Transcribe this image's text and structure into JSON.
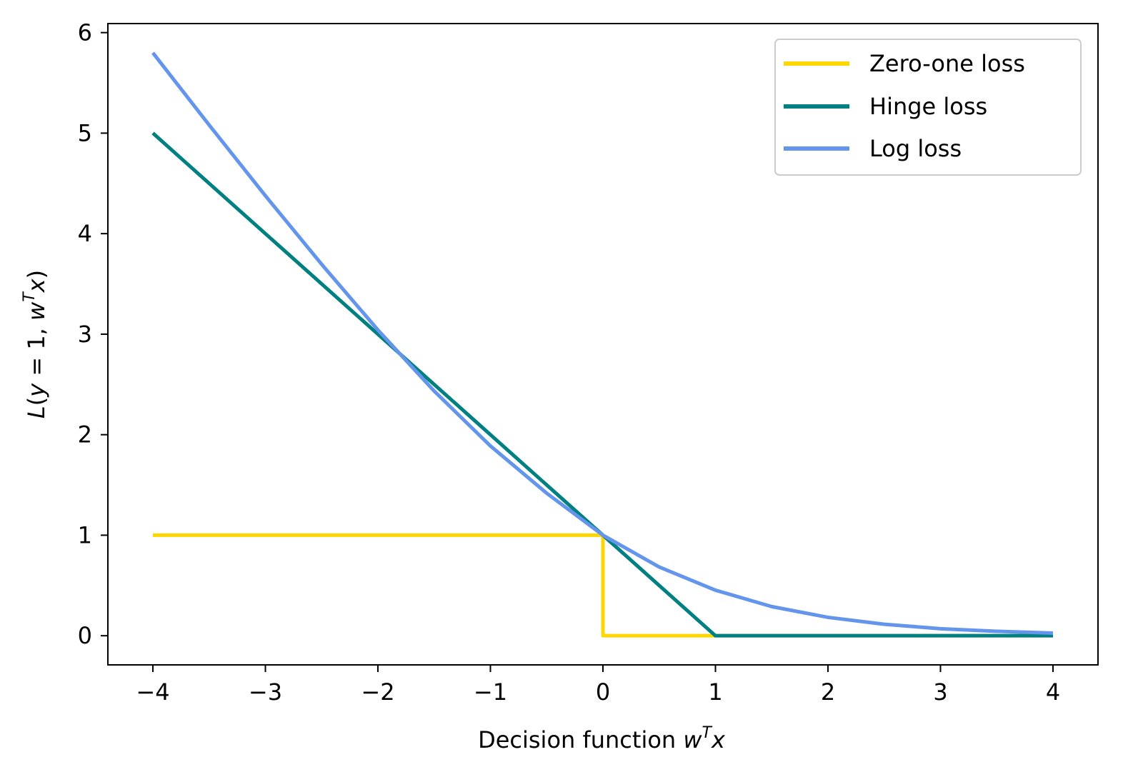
{
  "chart_data": {
    "type": "line",
    "title": "",
    "xlabel": {
      "prefix": "Decision function ",
      "var": "w",
      "sup": "T",
      "suffix": "x"
    },
    "ylabel": {
      "L": "L",
      "open": "(",
      "y": "y",
      "eq": " = 1, ",
      "w": "w",
      "sup": "T",
      "x": "x",
      "close": ")"
    },
    "xlim": [
      -4.4,
      4.4
    ],
    "ylim": [
      -0.29,
      6.09
    ],
    "xticks": [
      -4,
      -3,
      -2,
      -1,
      0,
      1,
      2,
      3,
      4
    ],
    "xtick_labels": [
      "−4",
      "−3",
      "−2",
      "−1",
      "0",
      "1",
      "2",
      "3",
      "4"
    ],
    "yticks": [
      0,
      1,
      2,
      3,
      4,
      5,
      6
    ],
    "ytick_labels": [
      "0",
      "1",
      "2",
      "3",
      "4",
      "5",
      "6"
    ],
    "grid": false,
    "legend_position": "top-right",
    "series": [
      {
        "name": "Zero-one loss",
        "color": "#FFD700",
        "x": [
          -4,
          0,
          0,
          4
        ],
        "y": [
          1,
          1,
          0,
          0
        ]
      },
      {
        "name": "Hinge loss",
        "color": "#008080",
        "x": [
          -4,
          1,
          4
        ],
        "y": [
          5,
          0,
          0
        ]
      },
      {
        "name": "Log loss",
        "color": "#6495ED",
        "x": [
          -4.0,
          -3.5,
          -3.0,
          -2.5,
          -2.0,
          -1.5,
          -1.0,
          -0.5,
          0.0,
          0.5,
          1.0,
          1.5,
          2.0,
          2.5,
          3.0,
          3.5,
          4.0
        ],
        "y": [
          5.799,
          5.081,
          4.377,
          3.695,
          3.042,
          2.434,
          1.888,
          1.418,
          1.0,
          0.684,
          0.453,
          0.29,
          0.183,
          0.114,
          0.07,
          0.044,
          0.026
        ]
      }
    ]
  }
}
